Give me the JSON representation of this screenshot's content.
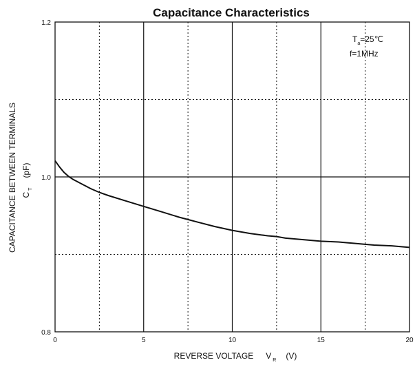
{
  "chart_data": {
    "type": "line",
    "title": "Capacitance Characteristics",
    "xlabel": {
      "main": "REVERSE VOLTAGE",
      "symbol": "V",
      "subscript": "R",
      "unit": "(V)"
    },
    "ylabel": {
      "line1": "CAPACITANCE BETWEEN TERMINALS",
      "symbol": "C",
      "subscript": "T",
      "unit": "(pF)"
    },
    "xlim": [
      0,
      20
    ],
    "ylim": [
      0.8,
      1.2
    ],
    "x_ticks": [
      "0",
      "5",
      "10",
      "15",
      "20"
    ],
    "y_ticks": [
      "0.8",
      "1.0",
      "1.2"
    ],
    "grid": {
      "major": "solid",
      "minor": "dotted"
    },
    "annotations": {
      "temp_symbol": "T",
      "temp_subscript": "a",
      "temp_value": "=25℃",
      "freq": "f=1MHz"
    },
    "series": [
      {
        "x": [
          0,
          0.25,
          0.5,
          0.75,
          1,
          1.5,
          2,
          2.5,
          3,
          4,
          5,
          6,
          7,
          7.5,
          8,
          9,
          10,
          11,
          12,
          12.5,
          13,
          14,
          15,
          16,
          17,
          17.5,
          18,
          19,
          20
        ],
        "y": [
          1.021,
          1.013,
          1.006,
          1.001,
          0.997,
          0.991,
          0.985,
          0.98,
          0.976,
          0.969,
          0.962,
          0.955,
          0.948,
          0.945,
          0.942,
          0.936,
          0.931,
          0.927,
          0.924,
          0.923,
          0.921,
          0.919,
          0.917,
          0.916,
          0.914,
          0.913,
          0.912,
          0.911,
          0.909
        ]
      }
    ]
  }
}
